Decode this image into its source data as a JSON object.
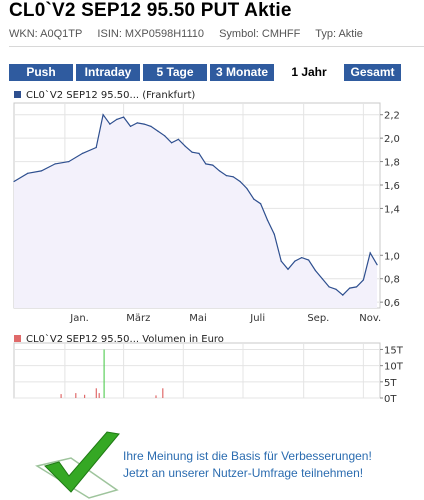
{
  "header": {
    "title": "CL0`V2 SEP12 95.50 PUT Aktie",
    "wkn": "WKN: A0Q1TP",
    "isin": "ISIN: MXP0598H1110",
    "symbol": "Symbol: CMHFF",
    "typ": "Typ: Aktie"
  },
  "tabs": [
    {
      "label": "Push",
      "active": false
    },
    {
      "label": "Intraday",
      "active": false
    },
    {
      "label": "5 Tage",
      "active": false
    },
    {
      "label": "3 Monate",
      "active": false
    },
    {
      "label": "1 Jahr",
      "active": true
    },
    {
      "label": "Gesamt",
      "active": false
    }
  ],
  "colors": {
    "tab_bg": "#2f5b9f",
    "price_line": "#2e4f8f",
    "price_fill": "#f3f1fb",
    "price_legend": "#2e4f8f",
    "volume_legend": "#e06a6a",
    "volume_bar": "#e06a6a",
    "volume_bar_large": "#5ccf5c"
  },
  "chart_data": [
    {
      "type": "area",
      "legend": "CL0`V2 SEP12 95.50... (Frankfurt)",
      "x_tick_labels": [
        "Jan.",
        "März",
        "Mai",
        "Juli",
        "Sep.",
        "Nov."
      ],
      "y_tick_labels": [
        "2,2",
        "2,0",
        "1,8",
        "1,6",
        "1,4",
        "1,0",
        "0,8",
        "0,6"
      ],
      "y_ticks": [
        2.2,
        2.0,
        1.8,
        1.6,
        1.4,
        1.0,
        0.8,
        0.6
      ],
      "ylim": [
        0.55,
        2.3
      ],
      "grid": true,
      "series": [
        {
          "name": "CL0`V2 SEP12 95.50... (Frankfurt)",
          "x": [
            "2011-11-10",
            "2011-11-24",
            "2011-12-08",
            "2011-12-22",
            "2012-01-05",
            "2012-01-19",
            "2012-02-02",
            "2012-02-09",
            "2012-02-16",
            "2012-02-23",
            "2012-03-01",
            "2012-03-08",
            "2012-03-15",
            "2012-03-22",
            "2012-03-29",
            "2012-04-05",
            "2012-04-12",
            "2012-04-19",
            "2012-04-26",
            "2012-05-03",
            "2012-05-10",
            "2012-05-17",
            "2012-05-24",
            "2012-05-31",
            "2012-06-07",
            "2012-06-14",
            "2012-06-21",
            "2012-06-28",
            "2012-07-05",
            "2012-07-12",
            "2012-07-19",
            "2012-07-26",
            "2012-08-02",
            "2012-08-09",
            "2012-08-16",
            "2012-08-23",
            "2012-08-30",
            "2012-09-06",
            "2012-09-13",
            "2012-09-20",
            "2012-09-27",
            "2012-10-04",
            "2012-10-11",
            "2012-10-18",
            "2012-10-25",
            "2012-11-01",
            "2012-11-08",
            "2012-11-15"
          ],
          "values": [
            1.63,
            1.7,
            1.72,
            1.78,
            1.8,
            1.87,
            1.92,
            2.2,
            2.12,
            2.16,
            2.18,
            2.1,
            2.13,
            2.12,
            2.1,
            2.06,
            2.02,
            1.96,
            1.99,
            1.93,
            1.88,
            1.87,
            1.78,
            1.77,
            1.72,
            1.68,
            1.67,
            1.63,
            1.57,
            1.48,
            1.44,
            1.3,
            1.18,
            0.95,
            0.88,
            0.95,
            0.98,
            0.96,
            0.87,
            0.8,
            0.73,
            0.71,
            0.66,
            0.72,
            0.73,
            0.79,
            1.02,
            0.92
          ]
        }
      ]
    },
    {
      "type": "bar",
      "legend": "CL0`V2 SEP12 95.50... Volumen in Euro",
      "y_tick_labels": [
        "15T",
        "10T",
        "5T",
        "0T"
      ],
      "y_ticks": [
        15,
        10,
        5,
        0
      ],
      "ylim": [
        0,
        17
      ],
      "grid": true,
      "series": [
        {
          "name": "CL0`V2 SEP12 95.50... Volumen in Euro",
          "x": [
            "2011-12-28",
            "2012-01-12",
            "2012-01-21",
            "2012-02-02",
            "2012-02-05",
            "2012-02-10",
            "2012-04-03",
            "2012-04-10"
          ],
          "values": [
            1.2,
            1.5,
            1.0,
            3.0,
            1.5,
            15.0,
            0.8,
            3.0
          ]
        }
      ]
    }
  ],
  "banner": {
    "line1": "Ihre Meinung ist die Basis für Verbesserungen!",
    "line2": "Jetzt an unserer Nutzer-Umfrage teilnehmen!"
  }
}
